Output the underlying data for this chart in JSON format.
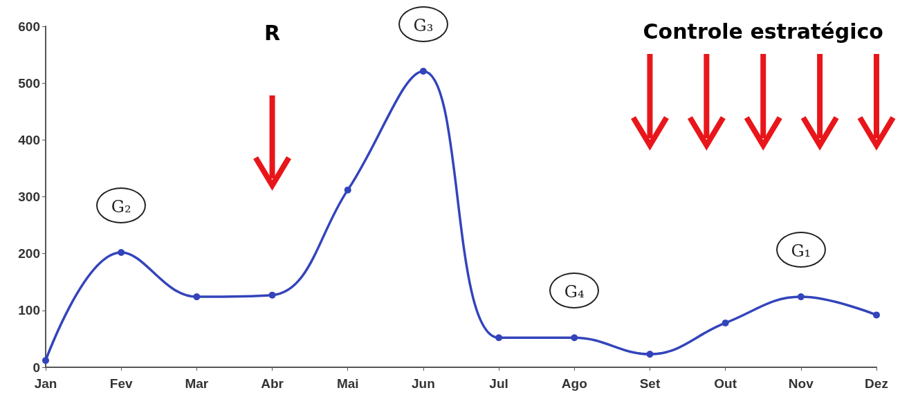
{
  "chart_data": {
    "type": "line",
    "categories": [
      "Jan",
      "Fev",
      "Mar",
      "Abr",
      "Mai",
      "Jun",
      "Jul",
      "Ago",
      "Set",
      "Out",
      "Nov",
      "Dez"
    ],
    "values": [
      12,
      202,
      124,
      127,
      312,
      521,
      52,
      52,
      23,
      78,
      124,
      92
    ],
    "color": "#3344bb",
    "marker": "circle",
    "grid": false,
    "ylim": [
      0,
      600
    ],
    "yticks": [
      0,
      100,
      200,
      300,
      400,
      500,
      600
    ],
    "annotations": [
      "R",
      "Controle estratégico",
      {
        "text": "G₂",
        "x": "Fev",
        "y": 202
      },
      {
        "text": "G₃",
        "x": "Jun",
        "y": 521
      },
      {
        "text": "G₄",
        "x": "Ago",
        "y": 52
      },
      {
        "text": "G₁",
        "x": "Nov",
        "y": 124
      }
    ]
  }
}
